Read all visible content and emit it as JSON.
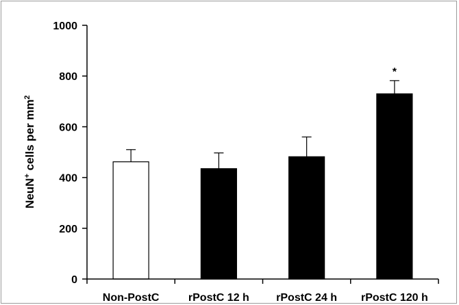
{
  "chart_data": {
    "type": "bar",
    "categories": [
      "Non-PostC",
      "rPostC 12 h",
      "rPostC 24 h",
      "rPostC 120 h"
    ],
    "values": [
      462,
      435,
      482,
      730
    ],
    "errors": [
      48,
      62,
      78,
      52
    ],
    "annotations": [
      "",
      "",
      "",
      "*"
    ],
    "bar_colors": [
      "#ffffff",
      "#000000",
      "#000000",
      "#000000"
    ],
    "ylabel_main": "NeuN",
    "ylabel_sup": "+",
    "ylabel_rest": " cells per mm",
    "ylabel_sup2": "2",
    "ylim": [
      0,
      1000
    ],
    "yticks": [
      0,
      200,
      400,
      600,
      800,
      1000
    ],
    "grid": false
  }
}
